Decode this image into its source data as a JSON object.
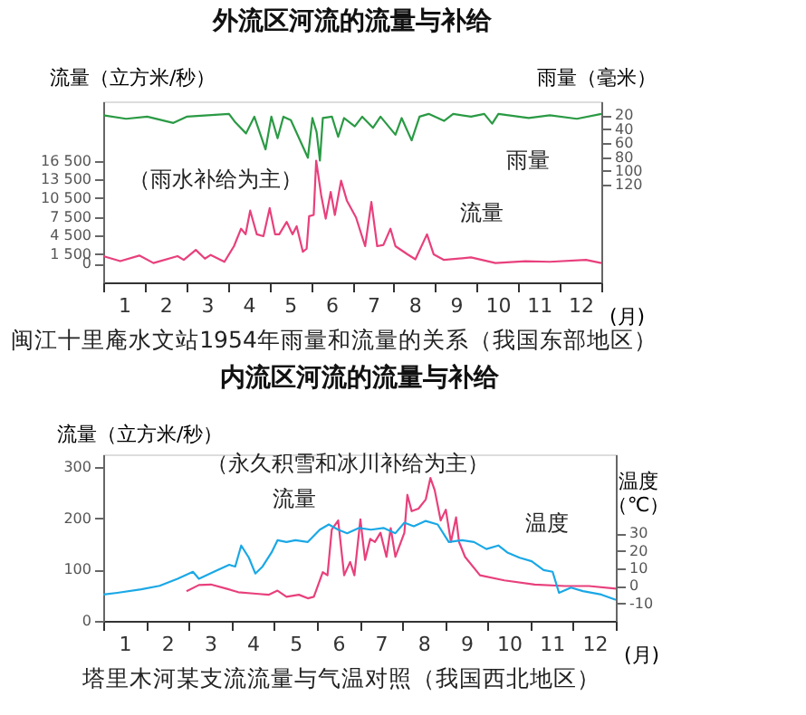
{
  "chart_data": [
    {
      "type": "line",
      "title": "外流区河流的流量与补给",
      "xlabel": "(月)",
      "ylabel": "流量（立方米/秒）",
      "y2label": "雨量（毫米）",
      "grid": false,
      "xlim": [
        0,
        12
      ],
      "xticks": [
        {
          "value": 0,
          "label": null
        },
        {
          "value": 0.5,
          "label": "1"
        },
        {
          "value": 1,
          "label": null
        },
        {
          "value": 1.5,
          "label": "2"
        },
        {
          "value": 2,
          "label": null
        },
        {
          "value": 2.5,
          "label": "3"
        },
        {
          "value": 3,
          "label": null
        },
        {
          "value": 3.5,
          "label": "4"
        },
        {
          "value": 4,
          "label": null
        },
        {
          "value": 4.5,
          "label": "5"
        },
        {
          "value": 5,
          "label": null
        },
        {
          "value": 5.5,
          "label": "6"
        },
        {
          "value": 6,
          "label": null
        },
        {
          "value": 6.5,
          "label": "7"
        },
        {
          "value": 7,
          "label": null
        },
        {
          "value": 7.5,
          "label": "8"
        },
        {
          "value": 8,
          "label": null
        },
        {
          "value": 8.5,
          "label": "9"
        },
        {
          "value": 9,
          "label": null
        },
        {
          "value": 9.5,
          "label": "10"
        },
        {
          "value": 10,
          "label": null
        },
        {
          "value": 10.5,
          "label": "11"
        },
        {
          "value": 11,
          "label": null
        },
        {
          "value": 11.5,
          "label": "12"
        },
        {
          "value": 12,
          "label": null
        }
      ],
      "ylim": [
        -3000,
        26000
      ],
      "yticks": [
        0,
        {
          "value": 1500,
          "label": "1 500"
        },
        {
          "value": 4500,
          "label": "4 500"
        },
        {
          "value": 7500,
          "label": "7 500"
        },
        {
          "value": 10500,
          "label": "10 500"
        },
        {
          "value": 13500,
          "label": "13 500"
        },
        {
          "value": 16500,
          "label": "16 500"
        }
      ],
      "y2lim": [
        260,
        0
      ],
      "y2ticks": [
        20,
        40,
        60,
        80,
        100,
        120
      ],
      "series": [
        {
          "name": "流量",
          "color": "#e8407c",
          "x": [
            0,
            0.41,
            0.87,
            1.21,
            1.79,
            1.94,
            2.23,
            2.45,
            2.59,
            2.92,
            3.15,
            3.32,
            3.43,
            3.54,
            3.7,
            3.86,
            4.01,
            4.14,
            4.24,
            4.42,
            4.56,
            4.66,
            4.81,
            4.9,
            4.96,
            5.07,
            5.13,
            5.25,
            5.36,
            5.48,
            5.58,
            5.73,
            5.87,
            6.09,
            6.31,
            6.46,
            6.6,
            6.75,
            6.92,
            7.04,
            7.33,
            7.52,
            7.8,
            7.96,
            8.21,
            8.86,
            9.45,
            10.17,
            10.76,
            11.63,
            12
          ],
          "values": [
            1200,
            400,
            1300,
            100,
            1200,
            600,
            2200,
            800,
            1400,
            300,
            2800,
            5600,
            4700,
            8500,
            4700,
            4400,
            8900,
            4700,
            4700,
            6700,
            4700,
            6000,
            1900,
            2400,
            7600,
            7800,
            16500,
            11000,
            7200,
            11500,
            7800,
            13300,
            10100,
            7400,
            2800,
            9900,
            2800,
            3000,
            5600,
            2800,
            1500,
            700,
            4700,
            1500,
            600,
            1000,
            100,
            400,
            300,
            600,
            100
          ]
        },
        {
          "name": "雨量",
          "color": "#2a9a44",
          "axis": "y2",
          "x": [
            0,
            0.55,
            1.06,
            1.69,
            2.01,
            3.03,
            3.18,
            3.44,
            3.64,
            3.91,
            4.05,
            4.2,
            4.34,
            4.52,
            4.78,
            4.93,
            5.04,
            5.14,
            5.22,
            5.29,
            5.51,
            5.66,
            5.8,
            6.06,
            6.24,
            6.5,
            6.68,
            7.04,
            7.19,
            7.43,
            7.62,
            7.84,
            8.21,
            8.43,
            8.86,
            9.18,
            9.37,
            9.52,
            10.25,
            10.76,
            11.41,
            12
          ],
          "values": [
            20,
            25,
            22,
            31,
            22,
            18,
            30,
            46,
            22,
            69,
            22,
            53,
            22,
            27,
            61,
            81,
            24,
            44,
            85,
            24,
            22,
            51,
            24,
            36,
            22,
            38,
            22,
            48,
            24,
            56,
            22,
            18,
            28,
            18,
            22,
            18,
            32,
            18,
            24,
            20,
            25,
            18
          ]
        }
      ],
      "annotations": [
        "（雨水补给为主）",
        "闽江十里庵水文站1954年雨量和流量的关系（我国东部地区）"
      ]
    },
    {
      "type": "line",
      "title": "内流区河流的流量与补给",
      "xlabel": "(月)",
      "ylabel": "流量（立方米/秒）",
      "y2label": "温度（℃）",
      "grid": false,
      "xlim": [
        0,
        12
      ],
      "xticks": [
        {
          "value": 0,
          "label": null
        },
        {
          "value": 0.5,
          "label": "1"
        },
        {
          "value": 1,
          "label": null
        },
        {
          "value": 1.5,
          "label": "2"
        },
        {
          "value": 2,
          "label": null
        },
        {
          "value": 2.5,
          "label": "3"
        },
        {
          "value": 3,
          "label": null
        },
        {
          "value": 3.5,
          "label": "4"
        },
        {
          "value": 4,
          "label": null
        },
        {
          "value": 4.5,
          "label": "5"
        },
        {
          "value": 5,
          "label": null
        },
        {
          "value": 5.5,
          "label": "6"
        },
        {
          "value": 6,
          "label": null
        },
        {
          "value": 6.5,
          "label": "7"
        },
        {
          "value": 7,
          "label": null
        },
        {
          "value": 7.5,
          "label": "8"
        },
        {
          "value": 8,
          "label": null
        },
        {
          "value": 8.5,
          "label": "9"
        },
        {
          "value": 9,
          "label": null
        },
        {
          "value": 9.5,
          "label": "10"
        },
        {
          "value": 10,
          "label": null
        },
        {
          "value": 10.5,
          "label": "11"
        },
        {
          "value": 11,
          "label": null
        },
        {
          "value": 11.5,
          "label": "12"
        },
        {
          "value": 12,
          "label": null
        }
      ],
      "ylim": [
        0,
        325
      ],
      "yticks": [
        0,
        100,
        200,
        300
      ],
      "y2lim": [
        -20,
        75
      ],
      "y2ticks": [
        -10,
        0,
        10,
        20,
        30
      ],
      "series": [
        {
          "name": "流量",
          "color": "#e8407c",
          "x": [
            1.95,
            2.24,
            2.52,
            2.88,
            3.16,
            3.58,
            3.87,
            4.08,
            4.29,
            4.58,
            4.79,
            4.93,
            5.0,
            5.14,
            5.25,
            5.35,
            5.5,
            5.64,
            5.78,
            5.88,
            6.02,
            6.13,
            6.25,
            6.36,
            6.49,
            6.63,
            6.73,
            6.84,
            7.05,
            7.12,
            7.22,
            7.38,
            7.55,
            7.66,
            7.76,
            7.9,
            8.02,
            8.14,
            8.26,
            8.33,
            8.47,
            8.82,
            9.39,
            10.1,
            10.81,
            11.37,
            12.0
          ],
          "values": [
            58,
            70,
            71,
            63,
            56,
            53,
            51,
            59,
            47,
            51,
            44,
            47,
            63,
            95,
            89,
            178,
            196,
            89,
            115,
            89,
            198,
            119,
            160,
            154,
            172,
            125,
            181,
            125,
            172,
            246,
            214,
            219,
            237,
            279,
            255,
            196,
            217,
            154,
            202,
            154,
            125,
            89,
            79,
            71,
            68,
            68,
            63
          ]
        },
        {
          "name": "温度",
          "color": "#1aa8e6",
          "axis": "y2",
          "x": [
            0,
            0.33,
            0.89,
            1.32,
            1.74,
            2.1,
            2.24,
            2.59,
            2.95,
            3.09,
            3.23,
            3.41,
            3.56,
            3.73,
            3.94,
            4.08,
            4.29,
            4.5,
            4.79,
            5.07,
            5.28,
            5.5,
            5.71,
            5.99,
            6.27,
            6.56,
            6.84,
            7.05,
            7.27,
            7.55,
            7.83,
            8.09,
            8.4,
            8.68,
            8.97,
            9.25,
            9.46,
            9.75,
            10.03,
            10.31,
            10.52,
            10.67,
            10.95,
            11.23,
            11.66,
            12
          ],
          "values": [
            -5,
            -4,
            -2,
            0,
            4,
            8,
            4,
            8,
            12,
            11,
            23,
            16,
            7,
            11,
            19,
            26,
            25,
            26,
            25,
            32,
            35,
            32,
            30,
            33,
            32,
            33,
            30,
            36,
            34,
            37,
            35,
            25,
            26,
            25,
            21,
            23,
            19,
            16,
            14,
            9,
            8,
            -4,
            -1,
            -3,
            -5,
            -8
          ]
        }
      ],
      "annotations": [
        "（永久积雪和冰川补给为主）",
        "塔里木河某支流流量与气温对照（我国西北地区）"
      ]
    }
  ]
}
